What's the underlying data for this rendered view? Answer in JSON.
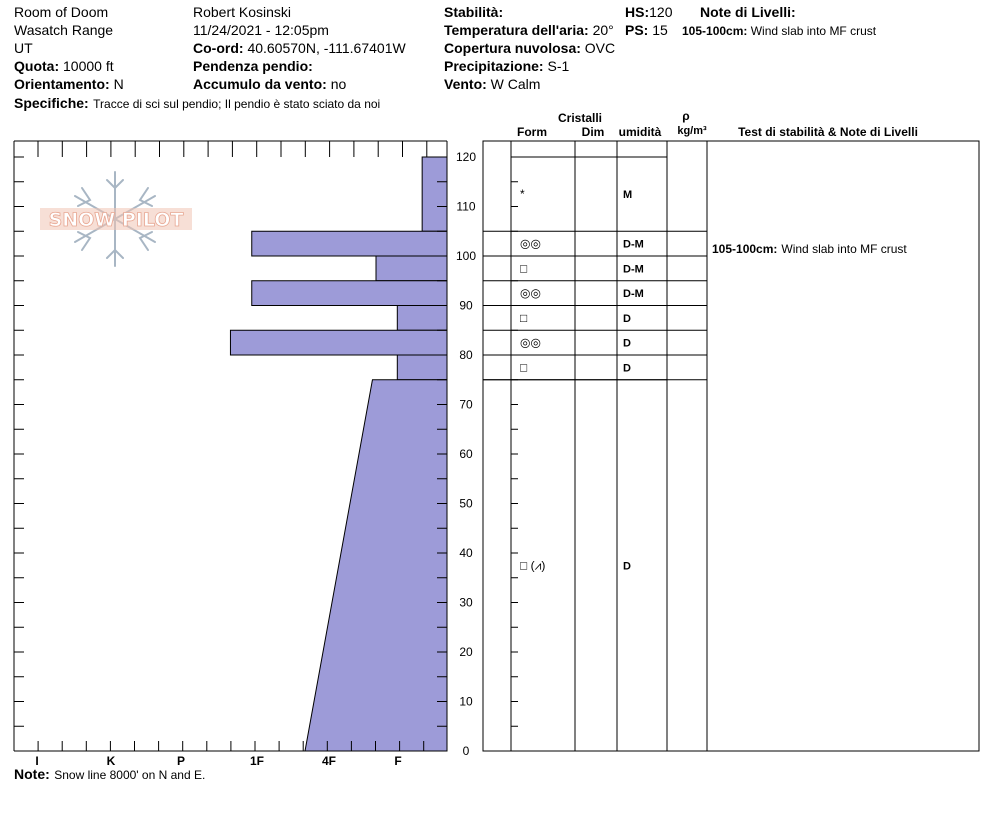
{
  "header": {
    "location": "Room of Doom",
    "range": "Wasatch Range",
    "state": "UT",
    "elevation_label": "Quota:",
    "elevation_value": "10000 ft",
    "aspect_label": "Orientamento:",
    "aspect_value": "N",
    "observer": "Robert  Kosinski",
    "datetime": "11/24/2021 - 12:05pm",
    "coord_label": "Co-ord:",
    "coord_value": "40.60570N, -111.67401W",
    "slope_label": "Pendenza pendio:",
    "slope_value": "",
    "wind_loading_label": "Accumulo da vento:",
    "wind_loading_value": "no",
    "stability_label": "Stabilità:",
    "stability_value": "",
    "air_temp_label": "Temperatura dell'aria:",
    "air_temp_value": "20°",
    "cloud_label": "Copertura nuvolosa:",
    "cloud_value": "OVC",
    "precip_label": "Precipitazione:",
    "precip_value": "S-1",
    "wind_label": "Vento:",
    "wind_value": "W Calm",
    "hs_label": "HS:",
    "hs_value": "120",
    "ps_label": "PS:",
    "ps_value": "15",
    "layer_notes_label": "Note di Livelli:",
    "layer_notes_range": "105-100cm:",
    "layer_notes_text": "Wind slab into MF crust",
    "specifics_label": "Specifiche:",
    "specifics_value": "Tracce di sci sul pendio;  Il pendio è stato sciato da noi",
    "note_label": "Note:",
    "note_value": "Snow line 8000' on N and E."
  },
  "columns": {
    "crystals": "Cristalli",
    "form": "Form",
    "dim": "Dim",
    "moisture": "umidità",
    "rho": "ρ",
    "density_unit": "kg/m³",
    "stability_notes": "Test di stabilità & Note di Livelli"
  },
  "stability_note_row": {
    "range": "105-100cm:",
    "text": "Wind slab into MF crust"
  },
  "logo": {
    "text": "SNOW PILOT"
  },
  "colors": {
    "bar_fill": "#9d9bd8",
    "bar_stroke": "#000000",
    "logo_text": "#f0c4b4",
    "logo_flake": "#a8b6c4"
  },
  "chart_data": {
    "type": "bar",
    "orientation": "horizontal",
    "y_axis": {
      "min": 0,
      "max": 120,
      "ticks": [
        0,
        10,
        20,
        30,
        40,
        50,
        60,
        70,
        80,
        90,
        100,
        110,
        120
      ]
    },
    "x_axis": {
      "categories": [
        "I",
        "K",
        "P",
        "1F",
        "4F",
        "F"
      ],
      "direction": "right-to-left"
    },
    "hardness_profile": [
      {
        "from": 120,
        "to": 105,
        "hardness": 0.35
      },
      {
        "from": 105,
        "to": 100,
        "hardness": 2.75
      },
      {
        "from": 100,
        "to": 95,
        "hardness": 1.0
      },
      {
        "from": 95,
        "to": 90,
        "hardness": 2.75
      },
      {
        "from": 90,
        "to": 85,
        "hardness": 0.7
      },
      {
        "from": 85,
        "to": 80,
        "hardness": 3.05
      },
      {
        "from": 80,
        "to": 75,
        "hardness": 0.7
      },
      {
        "from": 75,
        "to": 0,
        "hardness_top": 1.05,
        "hardness_bottom": 2.0
      }
    ],
    "layers": [
      {
        "from": 120,
        "to": 105,
        "form": "*",
        "moisture": "M"
      },
      {
        "from": 105,
        "to": 100,
        "form": "◎◎",
        "moisture": "D-M"
      },
      {
        "from": 100,
        "to": 95,
        "form": "□",
        "moisture": "D-M"
      },
      {
        "from": 95,
        "to": 90,
        "form": "◎◎",
        "moisture": "D-M"
      },
      {
        "from": 90,
        "to": 85,
        "form": "□",
        "moisture": "D"
      },
      {
        "from": 85,
        "to": 80,
        "form": "◎◎",
        "moisture": "D"
      },
      {
        "from": 80,
        "to": 75,
        "form": "□",
        "moisture": "D"
      },
      {
        "from": 75,
        "to": 0,
        "form": "□ (⩘)",
        "moisture": "D"
      }
    ]
  }
}
